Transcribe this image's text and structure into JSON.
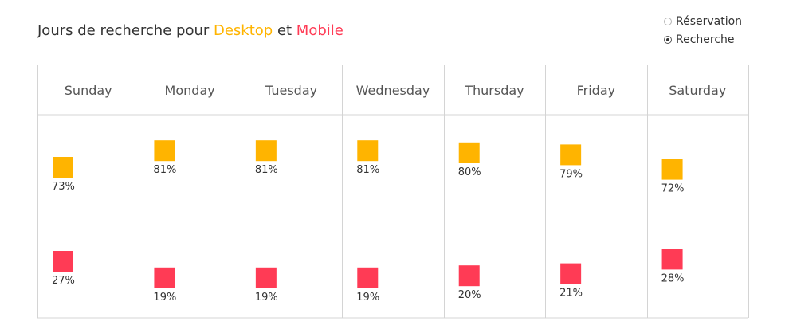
{
  "title": {
    "prefix": "Jours de recherche pour ",
    "series1": "Desktop",
    "connector": " et ",
    "series2": "Mobile"
  },
  "toggle": {
    "options": [
      {
        "label": "Réservation",
        "selected": false
      },
      {
        "label": "Recherche",
        "selected": true
      }
    ]
  },
  "colors": {
    "desktop": "#FFB400",
    "mobile": "#FF3B55",
    "grid": "#d4d4d4",
    "text": "#333333",
    "header_text": "#555555"
  },
  "chart_data": {
    "type": "scatter",
    "categories": [
      "Sunday",
      "Monday",
      "Tuesday",
      "Wednesday",
      "Thursday",
      "Friday",
      "Saturday"
    ],
    "series": [
      {
        "name": "Desktop",
        "values": [
          73,
          81,
          81,
          81,
          80,
          79,
          72
        ],
        "labels": [
          "73%",
          "81%",
          "81%",
          "81%",
          "80%",
          "79%",
          "72%"
        ]
      },
      {
        "name": "Mobile",
        "values": [
          27,
          19,
          19,
          19,
          20,
          21,
          28
        ],
        "labels": [
          "27%",
          "19%",
          "19%",
          "19%",
          "20%",
          "21%",
          "28%"
        ]
      }
    ],
    "unit": "%",
    "grid": true
  }
}
